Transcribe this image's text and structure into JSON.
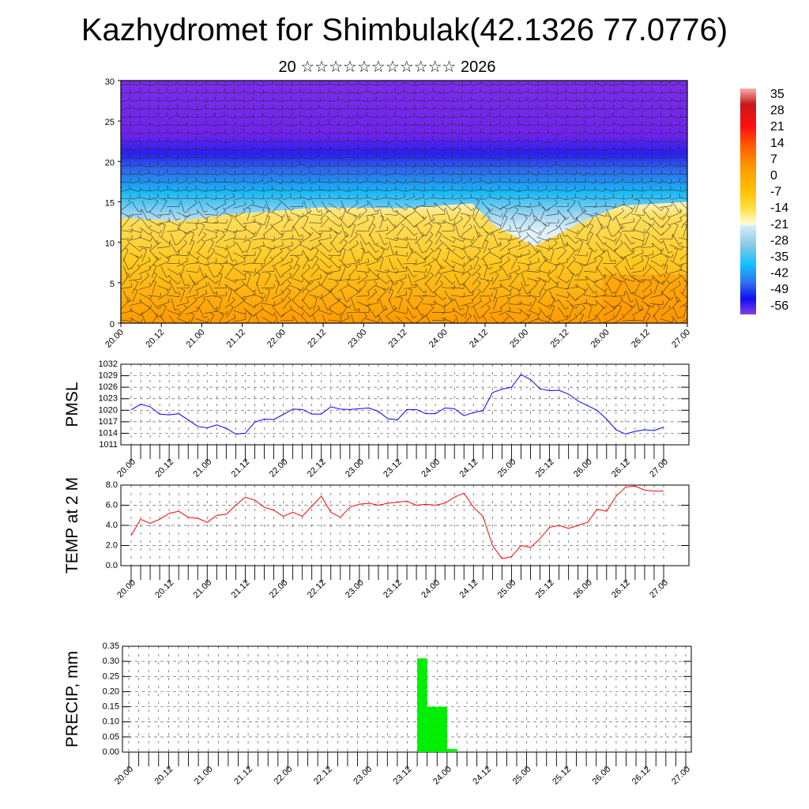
{
  "title": "Kazhydromet for Shimbulak(42.1326 77.0776)",
  "subtitle": "20 ☆☆☆☆☆☆☆☆☆☆☆ 2026",
  "chart_data": [
    {
      "type": "heatmap",
      "name": "temperature-wind cross-section",
      "yticks": [
        "0",
        "5",
        "10",
        "15",
        "20",
        "25",
        "30"
      ],
      "ylim": [
        0,
        30
      ],
      "xticks": [
        "20.00",
        "20.12",
        "21.00",
        "21.12",
        "22.00",
        "22.12",
        "23.00",
        "23.12",
        "24.00",
        "24.12",
        "25.00",
        "25.12",
        "26.00",
        "26.12",
        "27.00"
      ],
      "colorbar": {
        "labels": [
          "35",
          "28",
          "21",
          "14",
          "7",
          "0",
          "-7",
          "-14",
          "-21",
          "-28",
          "-35",
          "-42",
          "-49",
          "-56"
        ],
        "colors": [
          "#f8b0b0",
          "#d02020",
          "#ff1010",
          "#ff5a00",
          "#ff9a00",
          "#ffc000",
          "#ffe040",
          "#fffbd0",
          "#c8e8f5",
          "#80c8e8",
          "#10c0ff",
          "#3080f0",
          "#3060e0",
          "#1010f0",
          "#7a30e8"
        ]
      },
      "legend": "right"
    },
    {
      "type": "line",
      "ylabel": "PMSL",
      "ylim": [
        1011,
        1032
      ],
      "yticks": [
        "1011",
        "1014",
        "1017",
        "1020",
        "1023",
        "1026",
        "1029",
        "1032"
      ],
      "xticks": [
        "20.00",
        "20.12",
        "21.00",
        "21.12",
        "22.00",
        "22.12",
        "23.00",
        "23.12",
        "24.00",
        "24.12",
        "25.00",
        "25.12",
        "26.00",
        "26.12",
        "27.00"
      ],
      "x_step_hours": 3,
      "color": "#0000ff",
      "values": [
        1020.1,
        1021.6,
        1020.9,
        1019.0,
        1018.8,
        1019.1,
        1017.5,
        1015.8,
        1015.4,
        1016.2,
        1015.3,
        1013.8,
        1014.0,
        1016.9,
        1017.7,
        1017.6,
        1018.9,
        1020.3,
        1020.2,
        1019.0,
        1019.0,
        1020.9,
        1020.3,
        1020.2,
        1020.4,
        1020.6,
        1019.7,
        1017.8,
        1017.5,
        1020.2,
        1020.2,
        1019.1,
        1019.1,
        1020.6,
        1020.4,
        1018.6,
        1019.4,
        1019.9,
        1024.6,
        1025.5,
        1026.0,
        1029.3,
        1028.0,
        1025.6,
        1025.1,
        1025.2,
        1024.2,
        1022.4,
        1021.2,
        1020.0,
        1017.7,
        1014.9,
        1013.8,
        1014.5,
        1014.9,
        1014.7,
        1015.6
      ]
    },
    {
      "type": "line",
      "ylabel": "TEMP at 2 M",
      "ylim": [
        0,
        8
      ],
      "yticks": [
        "0.0",
        "2.0",
        "4.0",
        "6.0",
        "8.0"
      ],
      "xticks": [
        "20.00",
        "20.12",
        "21.00",
        "21.12",
        "22.00",
        "22.12",
        "23.00",
        "23.12",
        "24.00",
        "24.12",
        "25.00",
        "25.12",
        "26.00",
        "26.12",
        "27.00"
      ],
      "x_step_hours": 3,
      "color": "#ff0000",
      "values": [
        3.0,
        4.6,
        4.2,
        4.6,
        5.2,
        5.4,
        4.8,
        4.7,
        4.3,
        5.0,
        5.1,
        6.0,
        6.8,
        6.5,
        5.8,
        5.5,
        4.9,
        5.3,
        4.9,
        5.9,
        6.9,
        5.3,
        4.8,
        5.8,
        6.1,
        6.2,
        6.0,
        6.2,
        6.3,
        6.4,
        6.0,
        6.1,
        6.0,
        6.2,
        6.8,
        7.2,
        5.8,
        4.9,
        2.0,
        0.7,
        0.9,
        2.0,
        1.8,
        2.7,
        3.8,
        4.0,
        3.7,
        4.0,
        4.3,
        5.6,
        5.4,
        6.9,
        7.8,
        7.9,
        7.5,
        7.4,
        7.4
      ]
    },
    {
      "type": "bar",
      "ylabel": "PRECIP, mm",
      "ylim": [
        0,
        0.35
      ],
      "yticks": [
        "0.00",
        "0.05",
        "0.10",
        "0.15",
        "0.20",
        "0.25",
        "0.30",
        "0.35"
      ],
      "xticks": [
        "20.00",
        "20.12",
        "21.00",
        "21.12",
        "22.00",
        "22.12",
        "23.00",
        "23.12",
        "24.00",
        "24.12",
        "25.00",
        "25.12",
        "26.00",
        "26.12",
        "27.00"
      ],
      "x_step_hours": 3,
      "color": "#00ee00",
      "bars": [
        {
          "start_index": 29,
          "value": 0.31
        },
        {
          "start_index": 30,
          "value": 0.15
        },
        {
          "start_index": 31,
          "value": 0.15
        },
        {
          "start_index": 32,
          "value": 0.01
        }
      ]
    }
  ]
}
